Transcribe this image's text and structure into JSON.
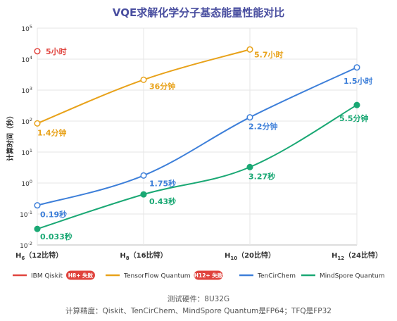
{
  "chart_data": {
    "type": "line",
    "title": "VQE求解化学分子基态能量性能对比",
    "ylabel": "计算时间（秒）",
    "yscale": "log",
    "ylim": [
      0.01,
      100000
    ],
    "grid": true,
    "legend_position": "bottom",
    "x_ticks": [
      {
        "main": "H",
        "sub": "6",
        "rest": "（12比特）"
      },
      {
        "main": "H",
        "sub": "8",
        "rest": "（16比特）"
      },
      {
        "main": "H",
        "sub": "10",
        "rest": "（20比特）"
      },
      {
        "main": "H",
        "sub": "12",
        "rest": "（24比特）"
      }
    ],
    "y_ticks": [
      {
        "base": "10",
        "exp": "-2"
      },
      {
        "base": "10",
        "exp": "-1"
      },
      {
        "base": "10",
        "exp": "0"
      },
      {
        "base": "10",
        "exp": "1"
      },
      {
        "base": "10",
        "exp": "2"
      },
      {
        "base": "10",
        "exp": "3"
      },
      {
        "base": "10",
        "exp": "4"
      },
      {
        "base": "10",
        "exp": "5"
      }
    ],
    "series": [
      {
        "name": "IBM Qiskit",
        "badge": "H8+ 失败",
        "color": "#e0443e",
        "points": [
          {
            "x": 0,
            "y": 18000,
            "label": "5小时"
          }
        ]
      },
      {
        "name": "TensorFlow Quantum",
        "badge": "H12+ 失败",
        "color": "#e8a21a",
        "points": [
          {
            "x": 0,
            "y": 84,
            "label": "1.4分钟"
          },
          {
            "x": 1,
            "y": 2160,
            "label": "36分钟"
          },
          {
            "x": 2,
            "y": 20520,
            "label": "5.7小时"
          }
        ]
      },
      {
        "name": "TenCirChem",
        "badge": "",
        "color": "#3d7fd9",
        "points": [
          {
            "x": 0,
            "y": 0.19,
            "label": "0.19秒"
          },
          {
            "x": 1,
            "y": 1.75,
            "label": "1.75秒"
          },
          {
            "x": 2,
            "y": 132,
            "label": "2.2分钟"
          },
          {
            "x": 3,
            "y": 5400,
            "label": "1.5小时"
          }
        ]
      },
      {
        "name": "MindSpore Quantum",
        "badge": "",
        "color": "#1aa874",
        "points": [
          {
            "x": 0,
            "y": 0.033,
            "label": "0.033秒"
          },
          {
            "x": 1,
            "y": 0.43,
            "label": "0.43秒"
          },
          {
            "x": 2,
            "y": 3.27,
            "label": "3.27秒"
          },
          {
            "x": 3,
            "y": 330,
            "label": "5.5分钟"
          }
        ]
      }
    ],
    "fail_badge_color": "#e0443e"
  },
  "footer": {
    "hardware": "测试硬件：8U32G",
    "precision": "计算精度：Qiskit、TenCirChem、MindSpore Quantum是FP64；TFQ是FP32"
  }
}
